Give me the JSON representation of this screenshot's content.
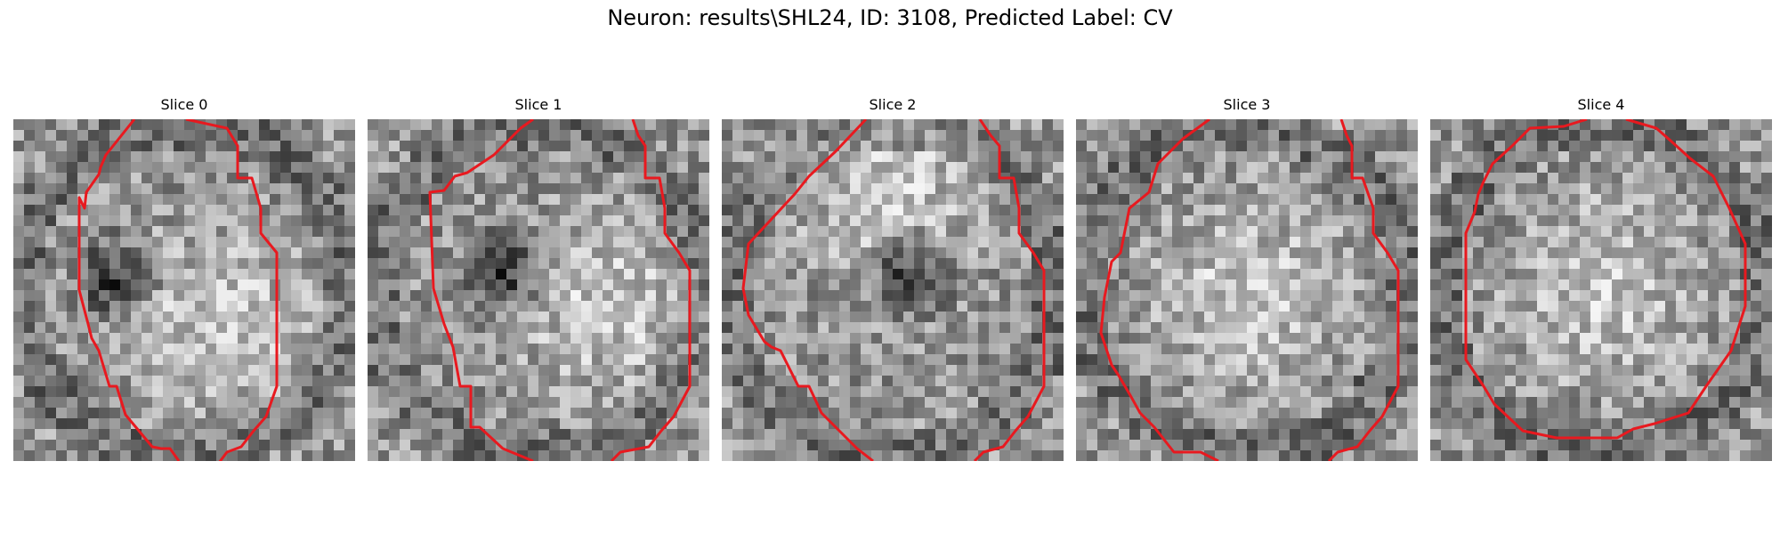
{
  "figure": {
    "title": "Neuron: results\\SHL24, ID: 3108, Predicted Label: CV"
  },
  "colors": {
    "contour": "#e8191f"
  },
  "panels": [
    {
      "title": "Slice 0",
      "seed": 11,
      "dark_spot": [
        0.3,
        0.47
      ],
      "bright_spot": [
        0.6,
        0.6
      ]
    },
    {
      "title": "Slice 1",
      "seed": 23,
      "dark_spot": [
        0.4,
        0.45
      ],
      "bright_spot": [
        0.7,
        0.55
      ]
    },
    {
      "title": "Slice 2",
      "seed": 37,
      "dark_spot": [
        0.55,
        0.45
      ],
      "bright_spot": [
        0.48,
        0.2
      ]
    },
    {
      "title": "Slice 3",
      "seed": 51,
      "dark_spot": null,
      "bright_spot": [
        0.5,
        0.5
      ]
    },
    {
      "title": "Slice 4",
      "seed": 67,
      "dark_spot": null,
      "bright_spot": [
        0.5,
        0.5
      ]
    }
  ]
}
